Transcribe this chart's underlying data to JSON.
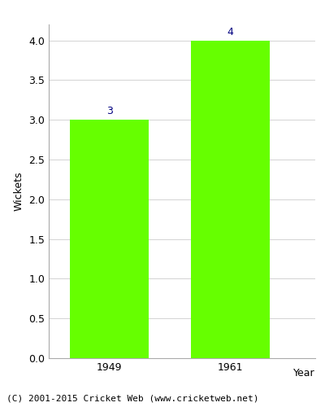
{
  "categories": [
    "1949",
    "1961"
  ],
  "values": [
    3,
    4
  ],
  "bar_color": "#66ff00",
  "bar_edgecolor": "#66ff00",
  "title": "",
  "xlabel": "Year",
  "ylabel": "Wickets",
  "ylim": [
    0,
    4.2
  ],
  "yticks": [
    0.0,
    0.5,
    1.0,
    1.5,
    2.0,
    2.5,
    3.0,
    3.5,
    4.0
  ],
  "label_color": "#000080",
  "label_fontsize": 9,
  "axis_label_fontsize": 9,
  "tick_fontsize": 9,
  "background_color": "#ffffff",
  "grid_color": "#cccccc",
  "footer_text": "(C) 2001-2015 Cricket Web (www.cricketweb.net)",
  "footer_fontsize": 8,
  "bar_width": 0.65,
  "xlim": [
    -0.5,
    1.7
  ]
}
